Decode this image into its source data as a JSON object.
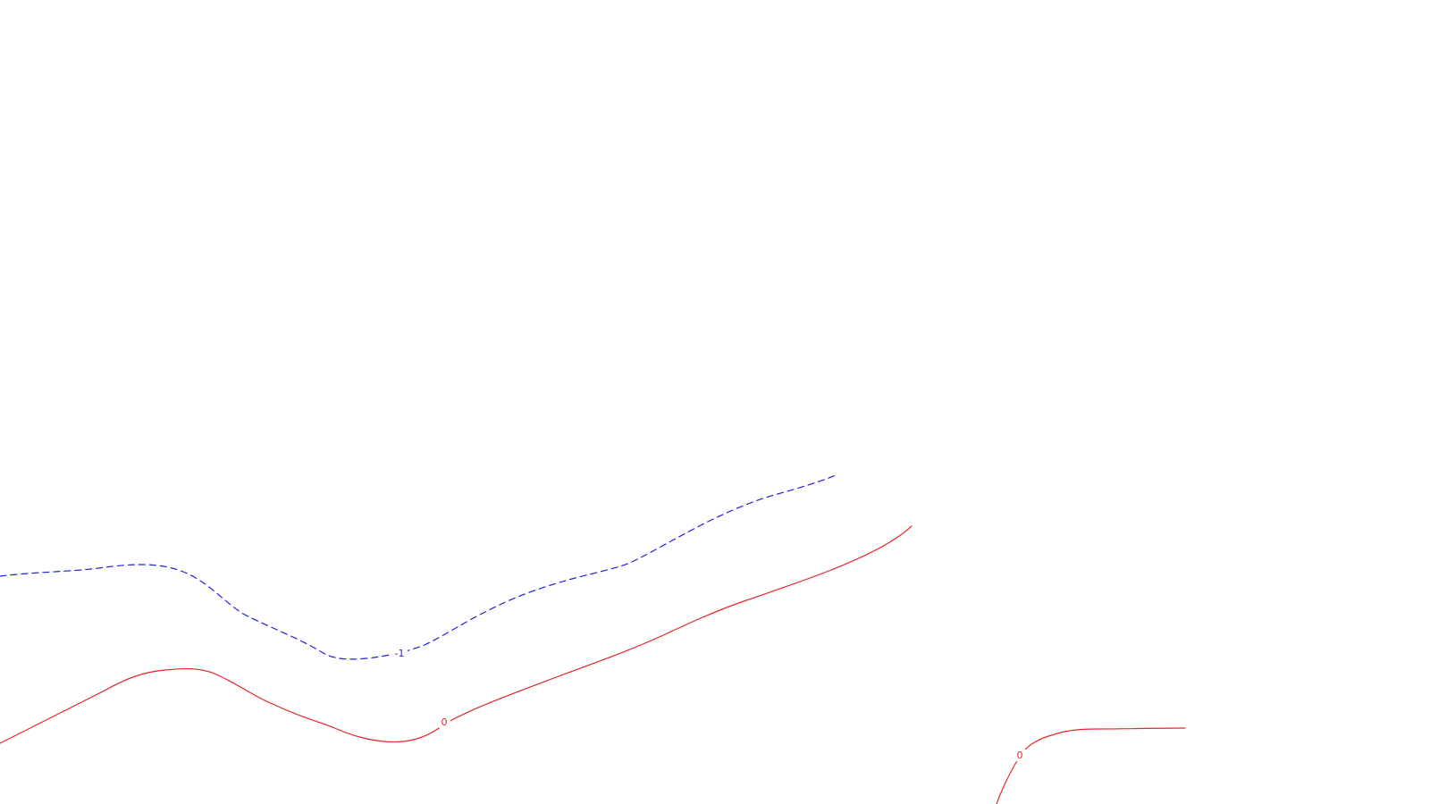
{
  "map": {
    "background_color": "#ffffff",
    "contours": [
      {
        "id": "contour-minus-1",
        "label": "-1",
        "value": -1,
        "color": "#1f1fdd",
        "style": "dashed"
      },
      {
        "id": "contour-zero-main",
        "label": "0",
        "value": 0,
        "color": "#e8252b",
        "style": "solid"
      },
      {
        "id": "contour-zero-right",
        "label": "0",
        "value": 0,
        "color": "#e8252b",
        "style": "solid"
      }
    ]
  }
}
